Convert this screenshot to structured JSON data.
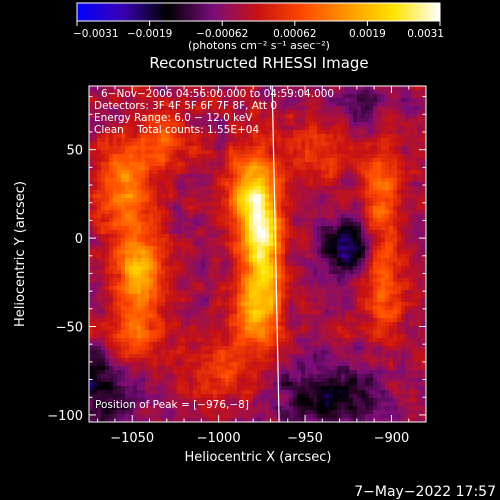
{
  "chart_data": {
    "type": "heatmap",
    "title": "Reconstructed RHESSI Image",
    "xlabel": "Heliocentric X (arcsec)",
    "ylabel": "Heliocentric Y (arcsec)",
    "xlim": [
      -1075,
      -880
    ],
    "ylim": [
      -104,
      86
    ],
    "x_ticks": [
      -1050,
      -1000,
      -950,
      -900
    ],
    "x_tick_labels": [
      "−1050",
      "−1000",
      "−950",
      "−900"
    ],
    "y_ticks": [
      -100,
      -50,
      0,
      50
    ],
    "y_tick_labels": [
      "−100",
      "−50",
      "0",
      "50"
    ],
    "grid": false,
    "colorbar": {
      "range": [
        -0.0031,
        0.0031
      ],
      "tick_labels": [
        "−0.0031",
        "−0.0019",
        "−0.00062",
        "0.00062",
        "0.0019",
        "0.0031"
      ],
      "units_line": "(photons cm⁻² s⁻¹ asec⁻²)",
      "colormap_stops": [
        "#0000ff",
        "#3a00b5",
        "#000000",
        "#7a0d7a",
        "#c81212",
        "#ff4a00",
        "#ff9a00",
        "#ffe400",
        "#ffffff"
      ]
    },
    "annotations": [
      "6−Nov−2006 04:56:00.000 to 04:59:04.000",
      "Detectors: 3F 4F 5F 6F 7F 8F, Att 0",
      "Energy Range: 6.0 − 12.0 keV",
      "Clean    Total counts: 1.55E+04"
    ],
    "peak_label": "Position of Peak = [−976,−8]",
    "peak": {
      "x": -976,
      "y": -8
    },
    "limb_line": [
      [
        -969,
        86
      ],
      [
        -965,
        -104
      ]
    ],
    "intensity_blobs": [
      {
        "x": -975,
        "y": 0,
        "sx": 8,
        "sy": 30,
        "amp": 0.0032
      },
      {
        "x": -985,
        "y": 25,
        "sx": 8,
        "sy": 15,
        "amp": 0.0015
      },
      {
        "x": -980,
        "y": -45,
        "sx": 10,
        "sy": 12,
        "amp": 0.0014
      },
      {
        "x": -1055,
        "y": 25,
        "sx": 12,
        "sy": 22,
        "amp": 0.0016
      },
      {
        "x": -1045,
        "y": -20,
        "sx": 10,
        "sy": 14,
        "amp": 0.0021
      },
      {
        "x": -1050,
        "y": -55,
        "sx": 13,
        "sy": 12,
        "amp": 0.0013
      },
      {
        "x": -1030,
        "y": 55,
        "sx": 12,
        "sy": 12,
        "amp": 0.0011
      },
      {
        "x": -905,
        "y": 25,
        "sx": 8,
        "sy": 22,
        "amp": 0.0014
      },
      {
        "x": -905,
        "y": -30,
        "sx": 8,
        "sy": 20,
        "amp": 0.0013
      },
      {
        "x": -1000,
        "y": -75,
        "sx": 15,
        "sy": 12,
        "amp": 0.001
      },
      {
        "x": -940,
        "y": 50,
        "sx": 14,
        "sy": 12,
        "amp": 0.0009
      },
      {
        "x": -925,
        "y": -5,
        "sx": 10,
        "sy": 10,
        "amp": -0.002
      },
      {
        "x": -1075,
        "y": -85,
        "sx": 18,
        "sy": 18,
        "amp": -0.0012
      },
      {
        "x": -935,
        "y": -90,
        "sx": 22,
        "sy": 14,
        "amp": -0.0011
      },
      {
        "x": -920,
        "y": 75,
        "sx": 12,
        "sy": 10,
        "amp": -0.0008
      }
    ]
  },
  "timestamp": "7−May−2022 17:57"
}
